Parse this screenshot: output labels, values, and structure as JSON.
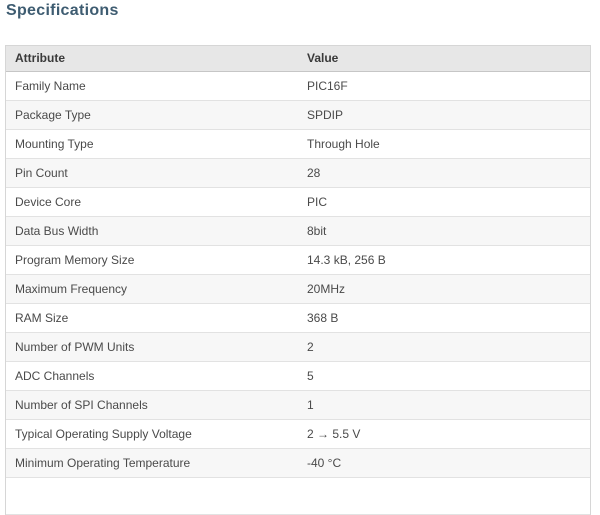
{
  "page": {
    "title": "Specifications"
  },
  "table": {
    "headers": [
      "Attribute",
      "Value"
    ],
    "rows": [
      {
        "attribute": "Family Name",
        "value": "PIC16F"
      },
      {
        "attribute": "Package Type",
        "value": "SPDIP"
      },
      {
        "attribute": "Mounting Type",
        "value": "Through Hole"
      },
      {
        "attribute": "Pin Count",
        "value": "28"
      },
      {
        "attribute": "Device Core",
        "value": "PIC"
      },
      {
        "attribute": "Data Bus Width",
        "value": "8bit"
      },
      {
        "attribute": "Program Memory Size",
        "value": "14.3 kB, 256 B"
      },
      {
        "attribute": "Maximum Frequency",
        "value": "20MHz"
      },
      {
        "attribute": "RAM Size",
        "value": "368 B"
      },
      {
        "attribute": "Number of PWM Units",
        "value": "2"
      },
      {
        "attribute": "ADC Channels",
        "value": "5"
      },
      {
        "attribute": "Number of SPI Channels",
        "value": "1"
      },
      {
        "attribute": "Typical Operating Supply Voltage",
        "value": "2 → 5.5 V"
      },
      {
        "attribute": "Minimum Operating Temperature",
        "value": "-40 °C"
      }
    ],
    "partial_row_visible": true
  },
  "colors": {
    "heading_text": "#3e5c71",
    "header_bg": "#e7e7e7",
    "row_alt_bg": "#f7f7f7",
    "row_bg": "#ffffff",
    "border": "#d6d6d6",
    "cell_text": "#4a4a4a"
  }
}
